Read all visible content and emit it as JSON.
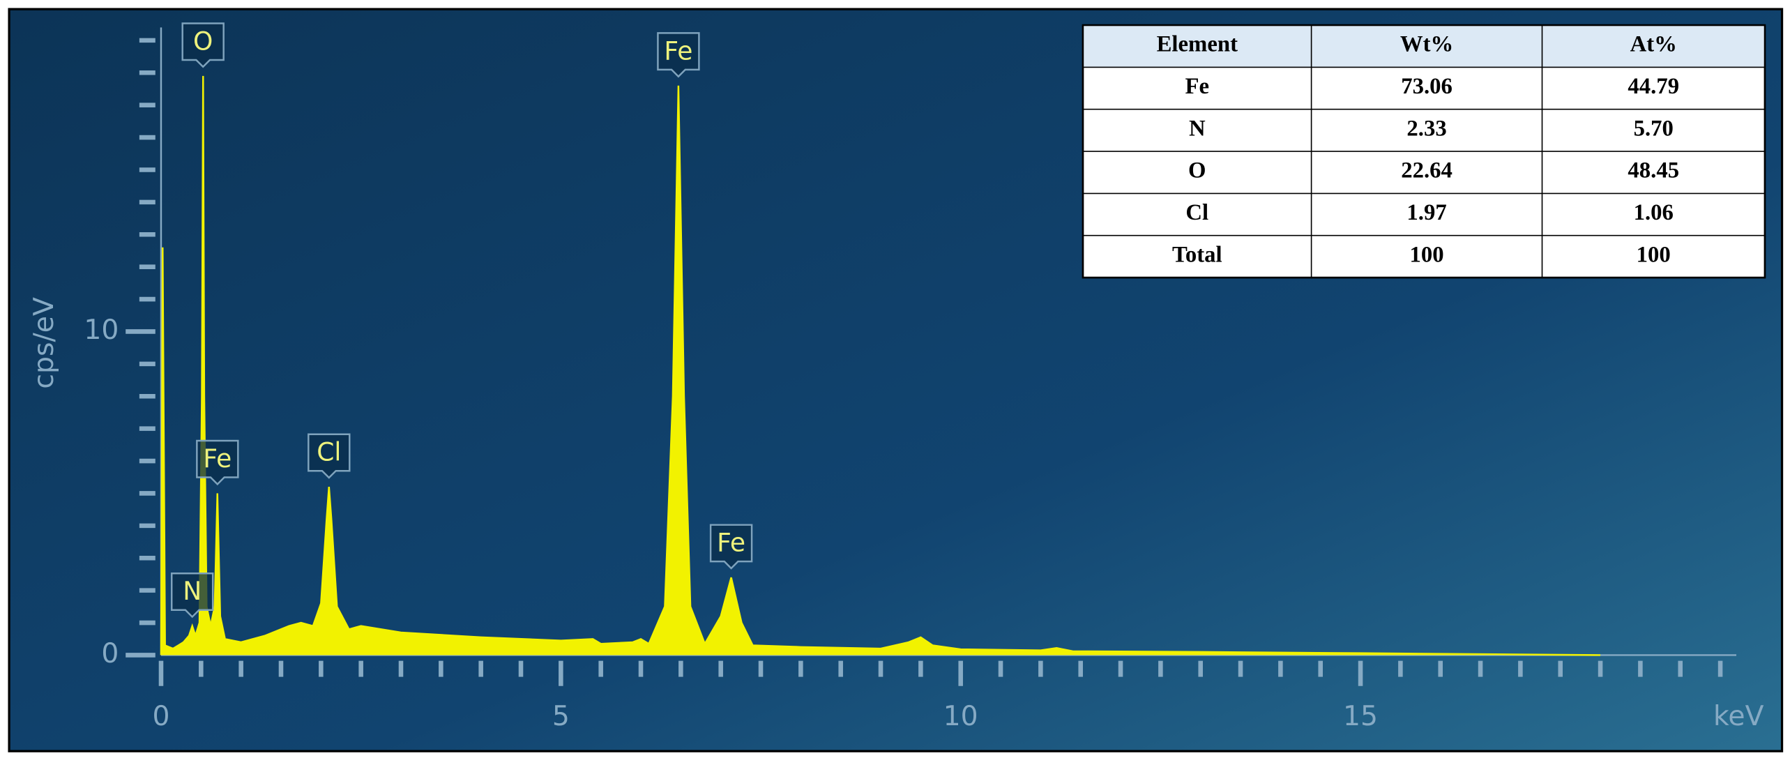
{
  "chart_data": {
    "type": "area",
    "x_label": "keV",
    "y_label": "cps/eV",
    "x": [
      0,
      0.02,
      0.05,
      0.15,
      0.28,
      0.35,
      0.39,
      0.43,
      0.48,
      0.51,
      0.525,
      0.54,
      0.57,
      0.62,
      0.67,
      0.705,
      0.74,
      0.8,
      1.0,
      1.3,
      1.6,
      1.75,
      1.9,
      2.0,
      2.07,
      2.1,
      2.13,
      2.2,
      2.35,
      2.5,
      3,
      4,
      5,
      5.4,
      5.5,
      5.9,
      6.0,
      6.1,
      6.3,
      6.4,
      6.47,
      6.54,
      6.62,
      6.8,
      7.0,
      7.13,
      7.26,
      7.4,
      8,
      9,
      9.35,
      9.5,
      9.65,
      10,
      11,
      11.2,
      11.4,
      13,
      15,
      18
    ],
    "values": [
      0,
      12.6,
      0.3,
      0.2,
      0.4,
      0.6,
      0.9,
      0.6,
      1.0,
      8,
      17.9,
      8,
      1.5,
      0.9,
      1.5,
      5.0,
      1.2,
      0.5,
      0.4,
      0.6,
      0.9,
      1.0,
      0.9,
      1.6,
      4.2,
      5.2,
      4.2,
      1.5,
      0.8,
      0.9,
      0.7,
      0.55,
      0.45,
      0.5,
      0.35,
      0.4,
      0.5,
      0.35,
      1.5,
      8,
      17.6,
      8,
      1.5,
      0.35,
      1.2,
      2.4,
      1.0,
      0.3,
      0.25,
      0.2,
      0.4,
      0.55,
      0.3,
      0.18,
      0.15,
      0.22,
      0.12,
      0.1,
      0.06,
      0
    ],
    "color": "#f2f200",
    "xlim": [
      0,
      19.7
    ],
    "ylim": [
      0,
      19.4
    ],
    "xticks": [
      0,
      5,
      10,
      15
    ],
    "yticks": [
      0,
      10
    ],
    "xminorticks": [
      0.5,
      1,
      1.5,
      2,
      2.5,
      3,
      3.5,
      4,
      4.5,
      5.5,
      6,
      6.5,
      7,
      7.5,
      8,
      8.5,
      9,
      9.5,
      10.5,
      11,
      11.5,
      12,
      12.5,
      13,
      13.5,
      14,
      14.5,
      15.5,
      16,
      16.5,
      17,
      17.5,
      18,
      18.5,
      19,
      19.5
    ],
    "yminorticks": [
      1,
      2,
      3,
      4,
      5,
      6,
      7,
      8,
      9,
      11,
      12,
      13,
      14,
      15,
      16,
      17,
      18,
      19
    ],
    "annotations": [
      {
        "text": "O",
        "x": 0.525,
        "y": 17.9
      },
      {
        "text": "N",
        "x": 0.39,
        "y": 0.9
      },
      {
        "text": "Fe",
        "x": 0.705,
        "y": 5.0
      },
      {
        "text": "Cl",
        "x": 2.1,
        "y": 5.2
      },
      {
        "text": "Fe",
        "x": 6.47,
        "y": 17.6
      },
      {
        "text": "Fe",
        "x": 7.13,
        "y": 2.4
      }
    ]
  },
  "table": {
    "columns": [
      "Element",
      "Wt%",
      "At%"
    ],
    "rows": [
      [
        "Fe",
        "73.06",
        "44.79"
      ],
      [
        "N",
        "2.33",
        "5.70"
      ],
      [
        "O",
        "22.64",
        "48.45"
      ],
      [
        "Cl",
        "1.97",
        "1.06"
      ],
      [
        "Total",
        "100",
        "100"
      ]
    ]
  }
}
